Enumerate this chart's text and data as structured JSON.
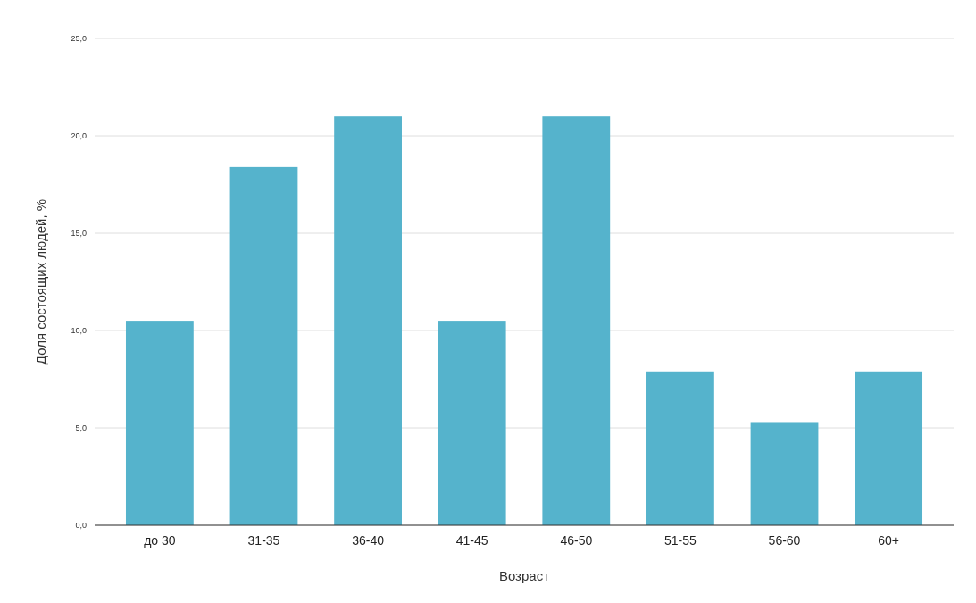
{
  "chart_data": {
    "type": "bar",
    "xlabel": "Возраст",
    "ylabel": "Доля состоящих людей, %",
    "categories": [
      "до 30",
      "31-35",
      "36-40",
      "41-45",
      "46-50",
      "51-55",
      "56-60",
      "60+"
    ],
    "values": [
      10.5,
      18.4,
      21.0,
      10.5,
      21.0,
      7.9,
      5.3,
      7.9
    ],
    "color": "#55b3cc",
    "ylim": [
      0,
      25
    ],
    "yticks": [
      {
        "value": 0,
        "label": "0,0"
      },
      {
        "value": 5,
        "label": "5,0"
      },
      {
        "value": 10,
        "label": "10,0"
      },
      {
        "value": 15,
        "label": "15,0"
      },
      {
        "value": 20,
        "label": "20,0"
      },
      {
        "value": 25,
        "label": "25,0"
      }
    ],
    "grid": true
  }
}
